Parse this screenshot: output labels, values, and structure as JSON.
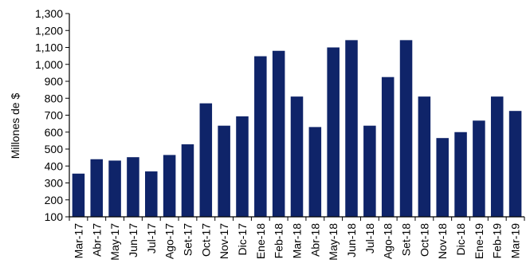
{
  "chart_data": {
    "type": "bar",
    "ylabel": "Millones de $",
    "ylim": [
      100,
      1300
    ],
    "y_ticks": [
      100,
      200,
      300,
      400,
      500,
      600,
      700,
      800,
      900,
      1000,
      1100,
      1200,
      1300
    ],
    "y_tick_labels": [
      "100",
      "200",
      "300",
      "400",
      "500",
      "600",
      "700",
      "800",
      "900",
      "1,000",
      "1,100",
      "1,200",
      "1,300"
    ],
    "grid": false,
    "bar_color": "#0f2469",
    "categories": [
      "Mar-17",
      "Abr-17",
      "May-17",
      "Jun-17",
      "Jul-17",
      "Ago-17",
      "Set-17",
      "Oct-17",
      "Nov-17",
      "Dic-17",
      "Ene-18",
      "Feb-18",
      "Mar-18",
      "Abr-18",
      "May-18",
      "Jun-18",
      "Jul-18",
      "Ago-18",
      "Set-18",
      "Oct-18",
      "Nov-18",
      "Dic-18",
      "Ene-19",
      "Feb-19",
      "Mar-19"
    ],
    "values": [
      355,
      440,
      432,
      452,
      368,
      465,
      528,
      770,
      638,
      693,
      1048,
      1080,
      810,
      630,
      1100,
      1143,
      638,
      925,
      1143,
      810,
      565,
      600,
      668,
      810,
      725
    ]
  }
}
